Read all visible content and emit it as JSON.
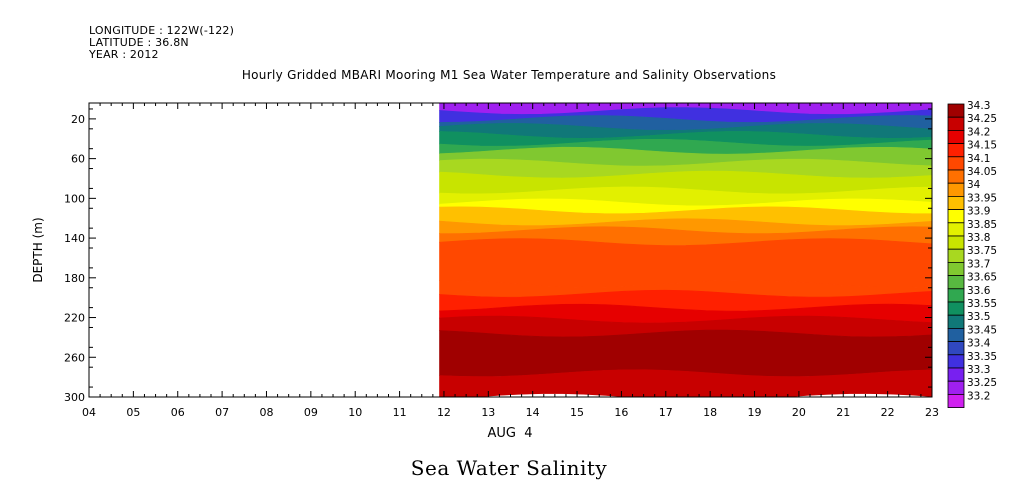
{
  "header": {
    "longitude": "LONGITUDE : 122W(-122)",
    "latitude": "LATITUDE : 36.8N",
    "year": "YEAR : 2012",
    "title": "Hourly Gridded MBARI Mooring M1 Sea Water Temperature and Salinity Observations"
  },
  "main_title": "Sea Water Salinity",
  "chart_data": {
    "type": "heatmap",
    "title": "Hourly Gridded MBARI Mooring M1 Sea Water Temperature and Salinity Observations",
    "subtitle": "Sea Water Salinity",
    "xlabel": "AUG  4",
    "ylabel": "DEPTH (m)",
    "x_ticks": [
      "04",
      "05",
      "06",
      "07",
      "08",
      "09",
      "10",
      "11",
      "12",
      "13",
      "14",
      "15",
      "16",
      "17",
      "18",
      "19",
      "20",
      "21",
      "22",
      "23"
    ],
    "xlim": [
      4,
      23
    ],
    "y_ticks": [
      20,
      60,
      100,
      140,
      180,
      220,
      260,
      300
    ],
    "ylim": [
      300,
      4
    ],
    "y_inverted": true,
    "data_start_x": 11.9,
    "colorbar": {
      "levels": [
        "34.3",
        "34.25",
        "34.2",
        "34.15",
        "34.1",
        "34.05",
        "34",
        "33.95",
        "33.9",
        "33.85",
        "33.8",
        "33.75",
        "33.7",
        "33.65",
        "33.6",
        "33.55",
        "33.5",
        "33.45",
        "33.4",
        "33.35",
        "33.3",
        "33.25",
        "33.2"
      ],
      "colors": [
        "#a00000",
        "#c80000",
        "#e60000",
        "#ff2000",
        "#ff4800",
        "#ff7000",
        "#ff9800",
        "#ffc000",
        "#ffff00",
        "#e2f000",
        "#c8e400",
        "#a8d820",
        "#80c830",
        "#58b840",
        "#30a850",
        "#109060",
        "#107878",
        "#2060a0",
        "#3048c0",
        "#4030e0",
        "#7820f0",
        "#a020f0",
        "#d020f0"
      ]
    },
    "depth_profile": {
      "depths": [
        4,
        12,
        20,
        28,
        36,
        44,
        52,
        64,
        76,
        92,
        104,
        112,
        124,
        132,
        144,
        186,
        196,
        210,
        222,
        236,
        276,
        300
      ],
      "salinity": [
        33.27,
        33.35,
        33.45,
        33.5,
        33.55,
        33.6,
        33.7,
        33.75,
        33.8,
        33.85,
        33.9,
        33.95,
        34.0,
        34.05,
        34.1,
        34.1,
        34.15,
        34.2,
        34.25,
        34.3,
        34.25,
        34.25
      ]
    },
    "grid": false,
    "legend": "right"
  }
}
